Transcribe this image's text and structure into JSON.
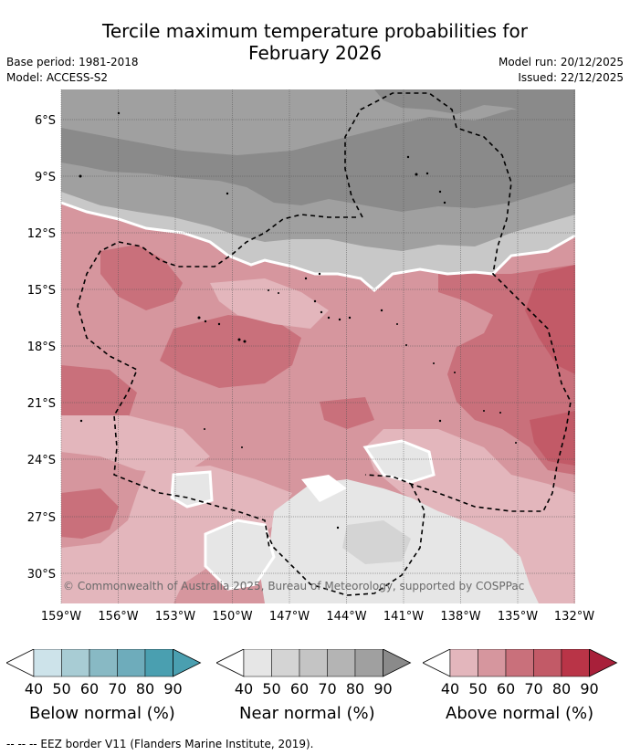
{
  "title_line1": "Tercile maximum temperature probabilities for",
  "title_line2": "February 2026",
  "base_period": "Base period: 1981-2018",
  "model": "Model: ACCESS-S2",
  "model_run": "Model run: 20/12/2025",
  "issued": "Issued: 22/12/2025",
  "copyright": "© Commonwealth of Australia 2025, Bureau of Meteorology, supported by COSPPac",
  "lat_labels": [
    "6°S",
    "9°S",
    "12°S",
    "15°S",
    "18°S",
    "21°S",
    "24°S",
    "27°S",
    "30°S"
  ],
  "lon_labels": [
    "159°W",
    "156°W",
    "153°W",
    "150°W",
    "147°W",
    "144°W",
    "141°W",
    "138°W",
    "135°W",
    "132°W"
  ],
  "colorbars": [
    {
      "title": "Below normal (%)",
      "ticks": [
        "40",
        "50",
        "60",
        "70",
        "80",
        "90"
      ],
      "colors": [
        "#ffffff",
        "#cde3ea",
        "#a8ccd4",
        "#88b9c4",
        "#6eacbb",
        "#4a9fb0"
      ]
    },
    {
      "title": "Near normal (%)",
      "ticks": [
        "40",
        "50",
        "60",
        "70",
        "80",
        "90"
      ],
      "colors": [
        "#ffffff",
        "#e6e6e6",
        "#d4d4d4",
        "#c4c4c4",
        "#b4b4b4",
        "#a0a0a0",
        "#8a8a8a"
      ]
    },
    {
      "title": "Above normal (%)",
      "ticks": [
        "40",
        "50",
        "60",
        "70",
        "80",
        "90"
      ],
      "colors": [
        "#ffffff",
        "#e3b6bc",
        "#d6969e",
        "#c9707b",
        "#c25a67",
        "#b93447",
        "#a8203a"
      ]
    }
  ],
  "footer": "--  --  -- EEZ border V11 (Flanders Marine Institute, 2019).",
  "palette": {
    "near_dark": "#8a8a8a",
    "near_mid": "#a0a0a0",
    "near_light": "#c8c8c8",
    "near_pale": "#e6e6e6",
    "above_pale": "#e3b6bc",
    "above_light": "#d6969e",
    "above_mid": "#c9707b",
    "above_dark": "#c25a67",
    "above_max": "#b93447"
  }
}
